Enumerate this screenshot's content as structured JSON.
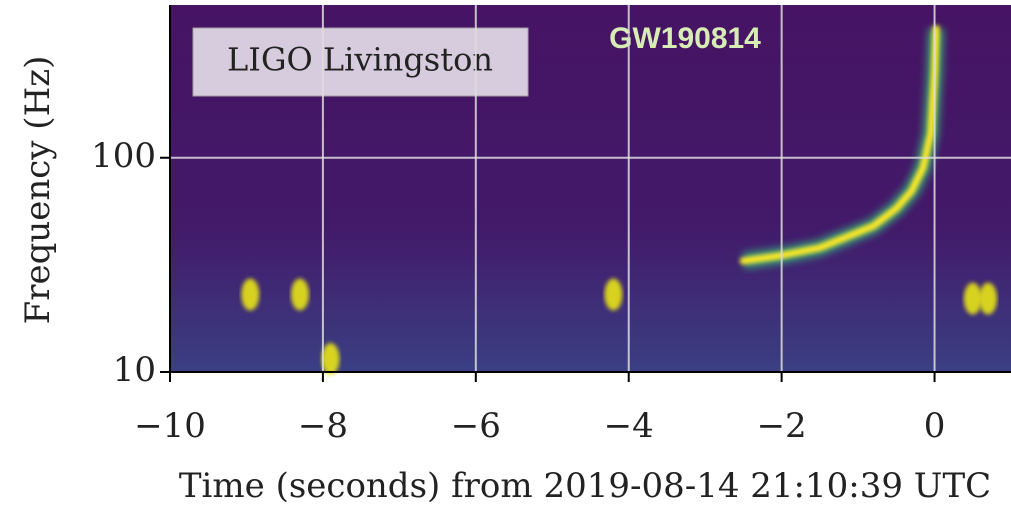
{
  "chart_data": {
    "type": "spectrogram",
    "title": "GW190814",
    "annotation": "LIGO Livingston",
    "xlabel": "Time (seconds) from 2019-08-14 21:10:39 UTC",
    "ylabel": "Frequency (Hz)",
    "xlim": [
      -10,
      1
    ],
    "xticks": [
      {
        "value": -10,
        "label": "−10"
      },
      {
        "value": -8,
        "label": "−8"
      },
      {
        "value": -6,
        "label": "−6"
      },
      {
        "value": -4,
        "label": "−4"
      },
      {
        "value": -2,
        "label": "−2"
      },
      0
    ],
    "ylim": [
      10,
      500
    ],
    "yticks": [
      10,
      100
    ],
    "ylog": true,
    "grid": true,
    "series": [
      {
        "color": "#fde725",
        "x": [
          -2.5,
          -2,
          -1.5,
          -1.2,
          -0.8,
          -0.5,
          -0.3,
          -0.15,
          -0.05,
          0,
          0.02
        ],
        "values": [
          33,
          35,
          38,
          42,
          48,
          58,
          70,
          90,
          130,
          250,
          400
        ]
      }
    ],
    "hotspots": {
      "color": "#e8e419",
      "x": [
        -8.95,
        -8.3,
        -7.9,
        -4.2,
        0.5,
        0.7
      ],
      "values": [
        23,
        23,
        11.5,
        23,
        22,
        22
      ]
    }
  }
}
